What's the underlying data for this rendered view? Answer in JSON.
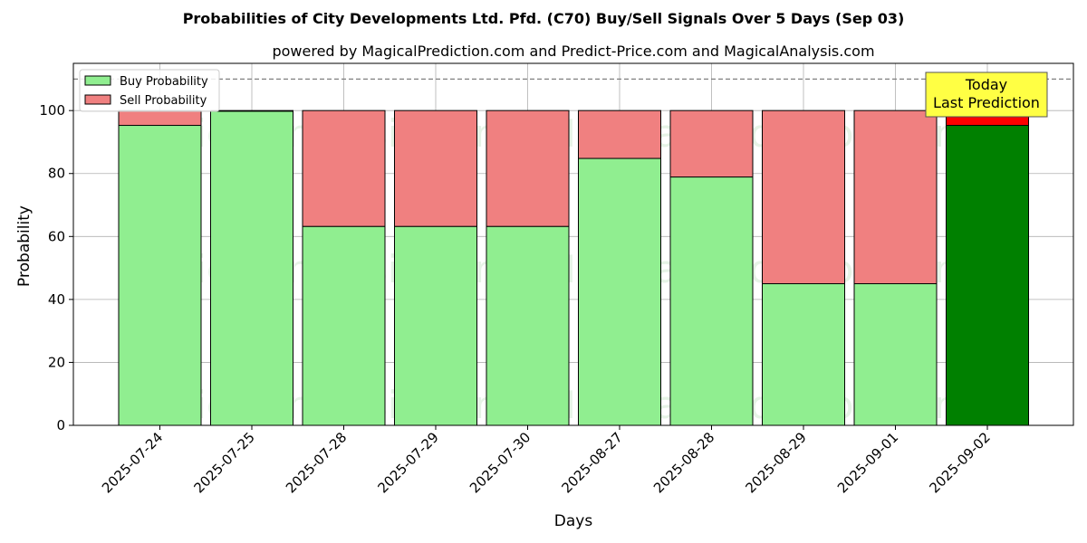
{
  "chart_data": {
    "type": "bar",
    "stacked": true,
    "title": "Probabilities of City Developments Ltd. Pfd. (C70) Buy/Sell Signals Over 5 Days (Sep 03)",
    "subtitle": "powered by MagicalPrediction.com and Predict-Price.com and MagicalAnalysis.com",
    "xlabel": "Days",
    "ylabel": "Probability",
    "ylim": [
      0,
      115
    ],
    "yticks": [
      0,
      20,
      40,
      60,
      80,
      100
    ],
    "grid": true,
    "legend_position": "top-left",
    "categories": [
      "2025-07-24",
      "2025-07-25",
      "2025-07-28",
      "2025-07-29",
      "2025-07-30",
      "2025-08-27",
      "2025-08-28",
      "2025-08-29",
      "2025-09-01",
      "2025-09-02"
    ],
    "series": [
      {
        "name": "Buy Probability",
        "values": [
          95.3,
          99.8,
          63.2,
          63.2,
          63.2,
          84.8,
          78.9,
          45.0,
          45.0,
          95.3
        ]
      },
      {
        "name": "Sell Probability",
        "values": [
          4.7,
          0.2,
          36.8,
          36.8,
          36.8,
          15.2,
          21.1,
          55.0,
          55.0,
          4.7
        ]
      }
    ],
    "colors": {
      "buy": "#90ee90",
      "sell": "#f08080",
      "buy_highlight": "#008000",
      "sell_highlight": "#ff0000",
      "annotation_bg": "#ffff44",
      "grid": "#b0b0b0",
      "threshold_line": "#808080"
    },
    "threshold_line": 110,
    "annotation": {
      "lines": [
        "Today",
        "Last Prediction"
      ]
    },
    "watermarks": [
      "MagicalAnalysis.com",
      "MagicalPrediction.com"
    ]
  }
}
